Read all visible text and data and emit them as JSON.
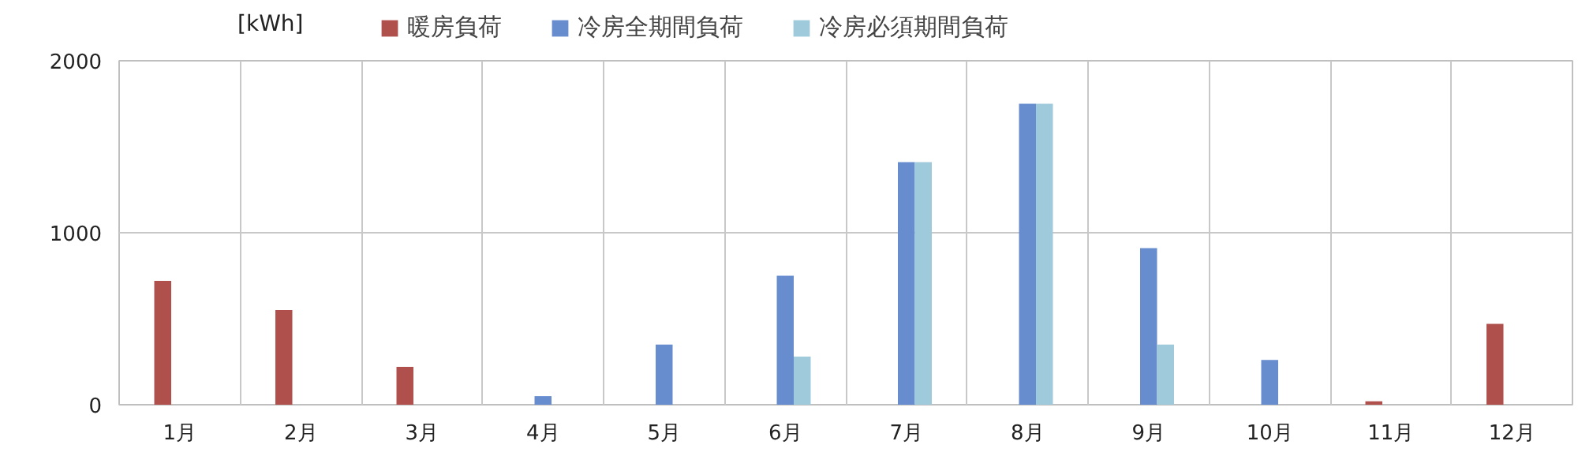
{
  "chart_data": {
    "type": "bar",
    "ylabel": "[kWh]",
    "categories": [
      "1月",
      "2月",
      "3月",
      "4月",
      "5月",
      "6月",
      "7月",
      "8月",
      "9月",
      "10月",
      "11月",
      "12月"
    ],
    "series": [
      {
        "name": "暖房負荷",
        "color": "#b0504c",
        "values": [
          720,
          550,
          220,
          null,
          null,
          null,
          null,
          null,
          null,
          null,
          20,
          470
        ]
      },
      {
        "name": "冷房全期間負荷",
        "color": "#678dcf",
        "values": [
          null,
          null,
          null,
          50,
          350,
          750,
          1410,
          1750,
          910,
          260,
          null,
          null
        ]
      },
      {
        "name": "冷房必須期間負荷",
        "color": "#9fcadc",
        "values": [
          null,
          null,
          null,
          null,
          null,
          280,
          1410,
          1750,
          350,
          null,
          null,
          null
        ]
      }
    ],
    "ylim": [
      0,
      2000
    ],
    "yticks": [
      0,
      1000,
      2000
    ],
    "grid": true,
    "legend": "top"
  }
}
